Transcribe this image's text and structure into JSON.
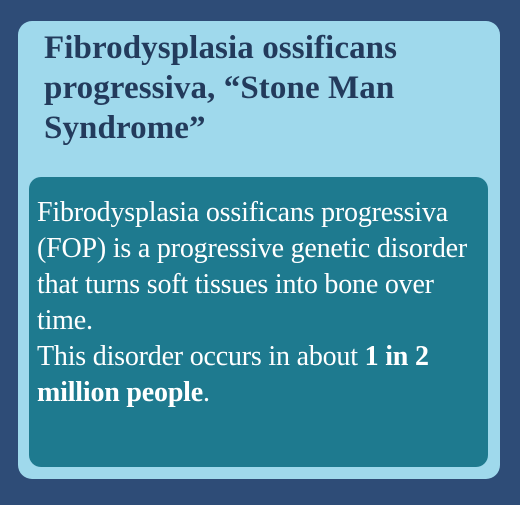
{
  "title": "Fibrodysplasia ossificans progressiva, “Stone Man Syndrome”",
  "body": {
    "definition": "Fibrodysplasia ossificans progressiva (FOP) is a progressive genetic disorder that turns soft tissues into bone over time.",
    "occurrence_prefix": "This disorder occurs in about ",
    "occurrence_rate": "1 in 2 million people",
    "occurrence_suffix": "."
  },
  "colors": {
    "background": "#2e4c77",
    "card": "#9fd9ec",
    "inner_panel": "#1e7a8f",
    "title_text": "#233b5c",
    "body_text": "#ffffff"
  }
}
